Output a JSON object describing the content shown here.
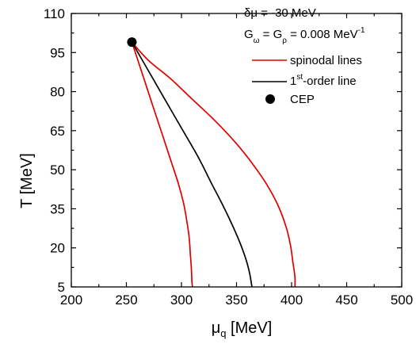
{
  "chart_data": {
    "type": "line",
    "xlabel": {
      "main": "μ",
      "sub": "q",
      "unit": " [MeV]"
    },
    "ylabel": "T [MeV]",
    "xlim": [
      200,
      500
    ],
    "ylim": [
      5,
      110
    ],
    "xticks": [
      "200",
      "250",
      "300",
      "350",
      "400",
      "450",
      "500"
    ],
    "yticks": [
      "5",
      "20",
      "35",
      "50",
      "65",
      "80",
      "95",
      "110"
    ],
    "annotations": {
      "delta_mu": "δμ = -30 MeV",
      "coupling": {
        "g1": "G",
        "s1": "ω",
        "eq1": " = G",
        "s2": "ρ",
        "eq2": " = 0.008 MeV",
        "sup": "-1"
      }
    },
    "legend_position": "top-right",
    "legend": [
      {
        "label": "spinodal lines",
        "color": "#e00000",
        "kind": "line"
      },
      {
        "label_main": "1",
        "label_sup": "st",
        "label_rest": "-order line",
        "color": "#000000",
        "kind": "line"
      },
      {
        "label": "CEP",
        "color": "#000000",
        "kind": "marker"
      }
    ],
    "series": [
      {
        "role": "spinodal-upper",
        "color": "#e00000",
        "points": [
          [
            255,
            99
          ],
          [
            270,
            92
          ],
          [
            290,
            85
          ],
          [
            310,
            77
          ],
          [
            330,
            69
          ],
          [
            350,
            60
          ],
          [
            365,
            52
          ],
          [
            378,
            44
          ],
          [
            388,
            36
          ],
          [
            395,
            28
          ],
          [
            399,
            21
          ],
          [
            401,
            15
          ],
          [
            403,
            9
          ],
          [
            403,
            5
          ]
        ]
      },
      {
        "role": "spinodal-lower",
        "color": "#e00000",
        "points": [
          [
            255,
            99
          ],
          [
            262,
            90
          ],
          [
            269,
            81
          ],
          [
            276,
            72
          ],
          [
            283,
            63
          ],
          [
            290,
            54
          ],
          [
            297,
            45
          ],
          [
            302,
            37
          ],
          [
            305,
            30
          ],
          [
            307,
            24
          ],
          [
            308,
            18
          ],
          [
            309,
            12
          ],
          [
            309.5,
            7
          ],
          [
            310,
            5
          ]
        ]
      },
      {
        "role": "first-order-line",
        "color": "#000000",
        "points": [
          [
            255,
            99
          ],
          [
            270,
            88
          ],
          [
            285,
            77
          ],
          [
            300,
            66
          ],
          [
            315,
            55
          ],
          [
            327,
            45
          ],
          [
            338,
            36
          ],
          [
            347,
            28
          ],
          [
            354,
            21
          ],
          [
            359,
            15
          ],
          [
            362,
            10
          ],
          [
            364,
            5
          ]
        ]
      }
    ],
    "cep": {
      "x": 255,
      "y": 99
    }
  }
}
